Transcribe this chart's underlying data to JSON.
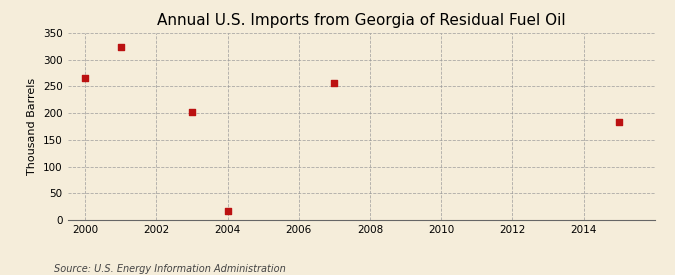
{
  "title": "Annual U.S. Imports from Georgia of Residual Fuel Oil",
  "ylabel": "Thousand Barrels",
  "source_text": "Source: U.S. Energy Information Administration",
  "background_color": "#f5edda",
  "x_data": [
    2000,
    2001,
    2003,
    2004,
    2007,
    2015
  ],
  "y_data": [
    265,
    323,
    202,
    17,
    257,
    184
  ],
  "marker_color": "#bb1111",
  "marker_size": 25,
  "xlim": [
    1999.5,
    2016
  ],
  "ylim": [
    0,
    350
  ],
  "yticks": [
    0,
    50,
    100,
    150,
    200,
    250,
    300,
    350
  ],
  "xticks": [
    2000,
    2002,
    2004,
    2006,
    2008,
    2010,
    2012,
    2014
  ],
  "grid_color": "#999999",
  "title_fontsize": 11,
  "ylabel_fontsize": 8,
  "tick_fontsize": 7.5,
  "source_fontsize": 7
}
